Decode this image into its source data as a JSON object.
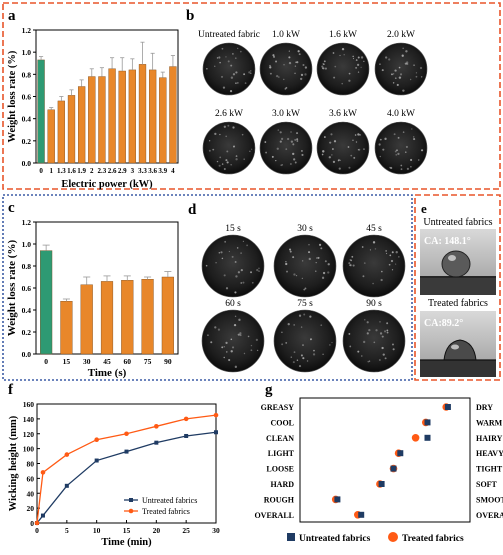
{
  "panel_letters": {
    "a": "a",
    "b": "b",
    "c": "c",
    "d": "d",
    "e": "e",
    "f": "f",
    "g": "g"
  },
  "colors": {
    "green": "#2e9a73",
    "orange": "#e8872a",
    "navy": "#1f3b63",
    "red_frame": "#e8552a",
    "blue_frame": "#3b5ba5",
    "line_orange": "#ff5a14"
  },
  "chart_data": [
    {
      "id": "a",
      "type": "bar",
      "categories": [
        "0",
        "1",
        "1.3",
        "1.6",
        "1.9",
        "2",
        "2.3",
        "2.6",
        "2.9",
        "3",
        "3.3",
        "3.6",
        "3.9",
        "4"
      ],
      "values": [
        0.93,
        0.48,
        0.56,
        0.61,
        0.69,
        0.78,
        0.78,
        0.85,
        0.83,
        0.84,
        0.89,
        0.84,
        0.77,
        0.87
      ],
      "errors": [
        0.03,
        0.02,
        0.04,
        0.05,
        0.06,
        0.07,
        0.08,
        0.1,
        0.12,
        0.1,
        0.2,
        0.15,
        0.05,
        0.1
      ],
      "xlabel": "Electric power (kW)",
      "ylabel": "Weight loss rate (%)",
      "ylim": [
        0,
        1.2
      ],
      "yticks": [
        "0.0",
        "0.2",
        "0.4",
        "0.6",
        "0.8",
        "1.0",
        "1.2"
      ],
      "highlight_index": 0
    },
    {
      "id": "c",
      "type": "bar",
      "categories": [
        "0",
        "15",
        "30",
        "45",
        "60",
        "75",
        "90"
      ],
      "values": [
        0.94,
        0.48,
        0.63,
        0.66,
        0.67,
        0.68,
        0.7
      ],
      "errors": [
        0.05,
        0.02,
        0.07,
        0.05,
        0.04,
        0.02,
        0.05
      ],
      "xlabel": "Time (s)",
      "ylabel": "Weight loss rate (%)",
      "ylim": [
        0,
        1.2
      ],
      "yticks": [
        "0.0",
        "0.2",
        "0.4",
        "0.6",
        "0.8",
        "1.0",
        "1.2"
      ],
      "highlight_index": 0
    },
    {
      "id": "f",
      "type": "line",
      "x": [
        0,
        1,
        5,
        10,
        15,
        20,
        25,
        30
      ],
      "series": [
        {
          "name": "Untreated fabrics",
          "values": [
            0,
            10,
            50,
            84,
            96,
            108,
            117,
            122
          ]
        },
        {
          "name": "Treated fabrics",
          "values": [
            0,
            68,
            92,
            112,
            120,
            130,
            140,
            145
          ]
        }
      ],
      "xlabel": "Time (min)",
      "ylabel": "Wicking height (mm)",
      "xlim": [
        0,
        30
      ],
      "ylim": [
        0,
        160
      ],
      "xticks": [
        "0",
        "5",
        "10",
        "15",
        "20",
        "25",
        "30"
      ],
      "yticks": [
        "0",
        "20",
        "40",
        "60",
        "80",
        "100",
        "120",
        "140",
        "160"
      ],
      "legend": "bottom-right"
    },
    {
      "id": "g",
      "type": "scatter",
      "left_labels": [
        "GREASY",
        "COOL",
        "CLEAN",
        "LIGHT",
        "LOOSE",
        "HARD",
        "ROUGH",
        "OVERALL"
      ],
      "right_labels": [
        "DRY",
        "WARM",
        "HAIRY",
        "HEAVY",
        "TIGHT",
        "SOFT",
        "SMOOTH",
        "OVERALL"
      ],
      "series": [
        {
          "name": "Untreated fabrics",
          "values": [
            8.7,
            7.5,
            7.5,
            5.9,
            5.5,
            4.8,
            2.2,
            3.6
          ]
        },
        {
          "name": "Treated fabrics",
          "values": [
            8.6,
            7.4,
            6.8,
            5.8,
            5.5,
            4.7,
            2.1,
            3.4
          ]
        }
      ],
      "xlim": [
        0,
        10
      ],
      "legend": "bottom"
    }
  ],
  "panel_b": {
    "labels": [
      "Untreated fabric",
      "1.0 kW",
      "1.6 kW",
      "2.0 kW",
      "2.6 kW",
      "3.0 kW",
      "3.6 kW",
      "4.0 kW"
    ]
  },
  "panel_d": {
    "labels": [
      "15 s",
      "30 s",
      "45 s",
      "60 s",
      "75 s",
      "90 s"
    ]
  },
  "panel_e": {
    "untreated_title": "Untreated fabrics",
    "untreated_ca": "CA: 148.1°",
    "treated_title": "Treated fabrics",
    "treated_ca": "CA:89.2°"
  }
}
